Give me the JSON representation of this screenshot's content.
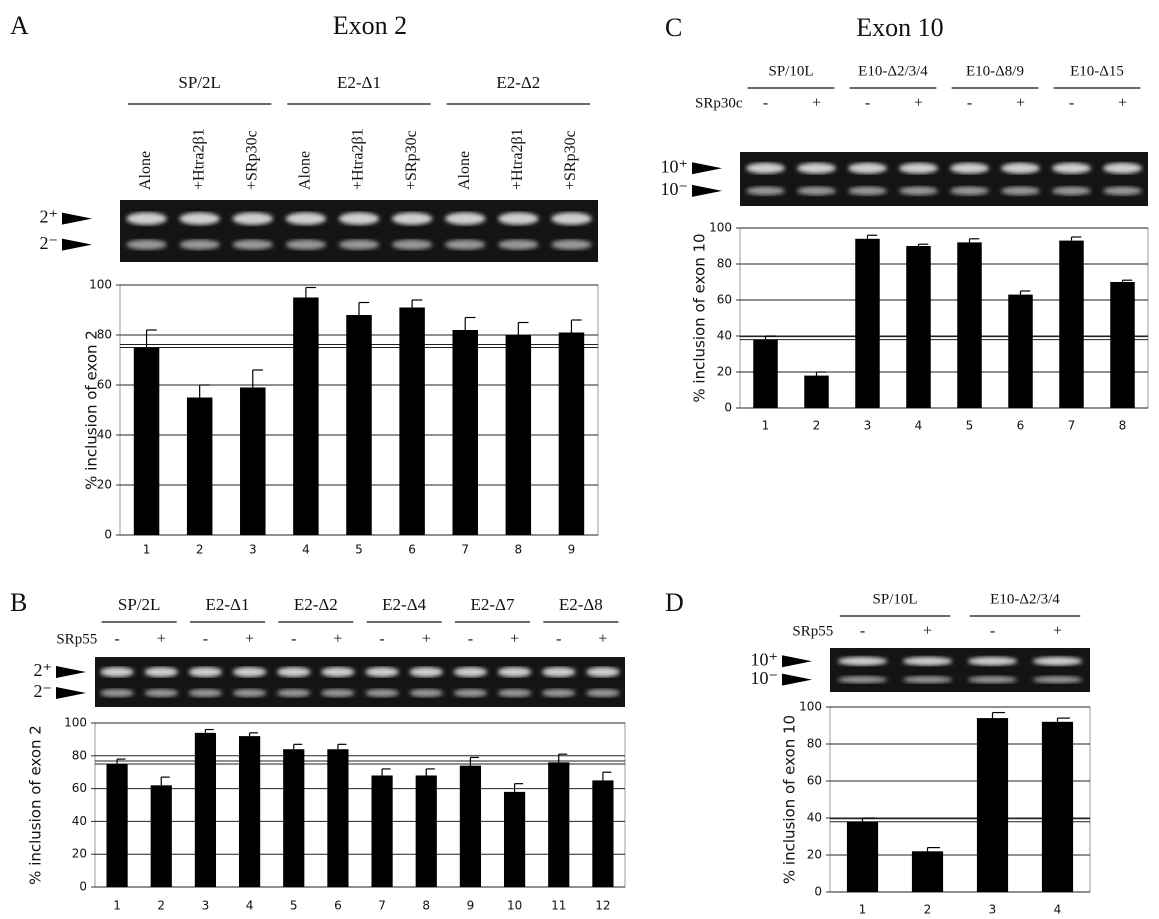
{
  "chart_data": [
    {
      "type": "bar",
      "panel": "A",
      "title": "Exon 2",
      "groups": [
        "SP/2L",
        "E2-Δ1",
        "E2-Δ2"
      ],
      "lane_labels": [
        "Alone",
        "+Htra2β1",
        "+SRp30c",
        "Alone",
        "+Htra2β1",
        "+SRp30c",
        "Alone",
        "+Htra2β1",
        "+SRp30c"
      ],
      "band_labels": [
        "2⁺",
        "2⁻"
      ],
      "y_label": "% inclusion of exon 2",
      "categories": [
        "1",
        "2",
        "3",
        "4",
        "5",
        "6",
        "7",
        "8",
        "9"
      ],
      "values": [
        75,
        55,
        59,
        95,
        88,
        91,
        82,
        80,
        81
      ],
      "errors": [
        7,
        5,
        7,
        4,
        5,
        3,
        5,
        5,
        5
      ],
      "color": "#000000",
      "ylim": [
        0,
        100
      ],
      "yticks": [
        0,
        20,
        40,
        60,
        80,
        100
      ],
      "grid": true,
      "reference_line": 75
    },
    {
      "type": "bar",
      "panel": "B",
      "groups": [
        "SP/2L",
        "E2-Δ1",
        "E2-Δ2",
        "E2-Δ4",
        "E2-Δ7",
        "E2-Δ8"
      ],
      "treatment": "SRp55",
      "signs": [
        "-",
        "+",
        "-",
        "+",
        "-",
        "+",
        "-",
        "+",
        "-",
        "+",
        "-",
        "+"
      ],
      "band_labels": [
        "2⁺",
        "2⁻"
      ],
      "y_label": "% inclusion of exon 2",
      "categories": [
        "1",
        "2",
        "3",
        "4",
        "5",
        "6",
        "7",
        "8",
        "9",
        "10",
        "11",
        "12"
      ],
      "values": [
        75,
        62,
        94,
        92,
        84,
        84,
        68,
        68,
        74,
        58,
        76,
        65
      ],
      "errors": [
        3,
        5,
        2,
        2,
        3,
        3,
        4,
        4,
        5,
        5,
        5,
        5
      ],
      "color": "#000000",
      "ylim": [
        0,
        100
      ],
      "yticks": [
        0,
        20,
        40,
        60,
        80,
        100
      ],
      "grid": true,
      "reference_line": 75
    },
    {
      "type": "bar",
      "panel": "C",
      "title": "Exon 10",
      "groups": [
        "SP/10L",
        "E10-Δ2/3/4",
        "E10-Δ8/9",
        "E10-Δ15"
      ],
      "treatment": "SRp30c",
      "signs": [
        "-",
        "+",
        "-",
        "+",
        "-",
        "+",
        "-",
        "+"
      ],
      "band_labels": [
        "10⁺",
        "10⁻"
      ],
      "y_label": "% inclusion of exon 10",
      "categories": [
        "1",
        "2",
        "3",
        "4",
        "5",
        "6",
        "7",
        "8"
      ],
      "values": [
        38,
        18,
        94,
        90,
        92,
        63,
        93,
        70
      ],
      "errors": [
        2,
        2,
        2,
        1,
        2,
        2,
        2,
        1
      ],
      "color": "#000000",
      "ylim": [
        0,
        100
      ],
      "yticks": [
        0,
        20,
        40,
        60,
        80,
        100
      ],
      "grid": true,
      "reference_line": 38
    },
    {
      "type": "bar",
      "panel": "D",
      "groups": [
        "SP/10L",
        "E10-Δ2/3/4"
      ],
      "treatment": "SRp55",
      "signs": [
        "-",
        "+",
        "-",
        "+"
      ],
      "band_labels": [
        "10⁺",
        "10⁻"
      ],
      "y_label": "% inclusion of exon 10",
      "categories": [
        "1",
        "2",
        "3",
        "4"
      ],
      "values": [
        38,
        22,
        94,
        92
      ],
      "errors": [
        2,
        2,
        3,
        2
      ],
      "color": "#000000",
      "ylim": [
        0,
        100
      ],
      "yticks": [
        0,
        20,
        40,
        60,
        80,
        100
      ],
      "grid": true,
      "reference_line": 38
    }
  ]
}
